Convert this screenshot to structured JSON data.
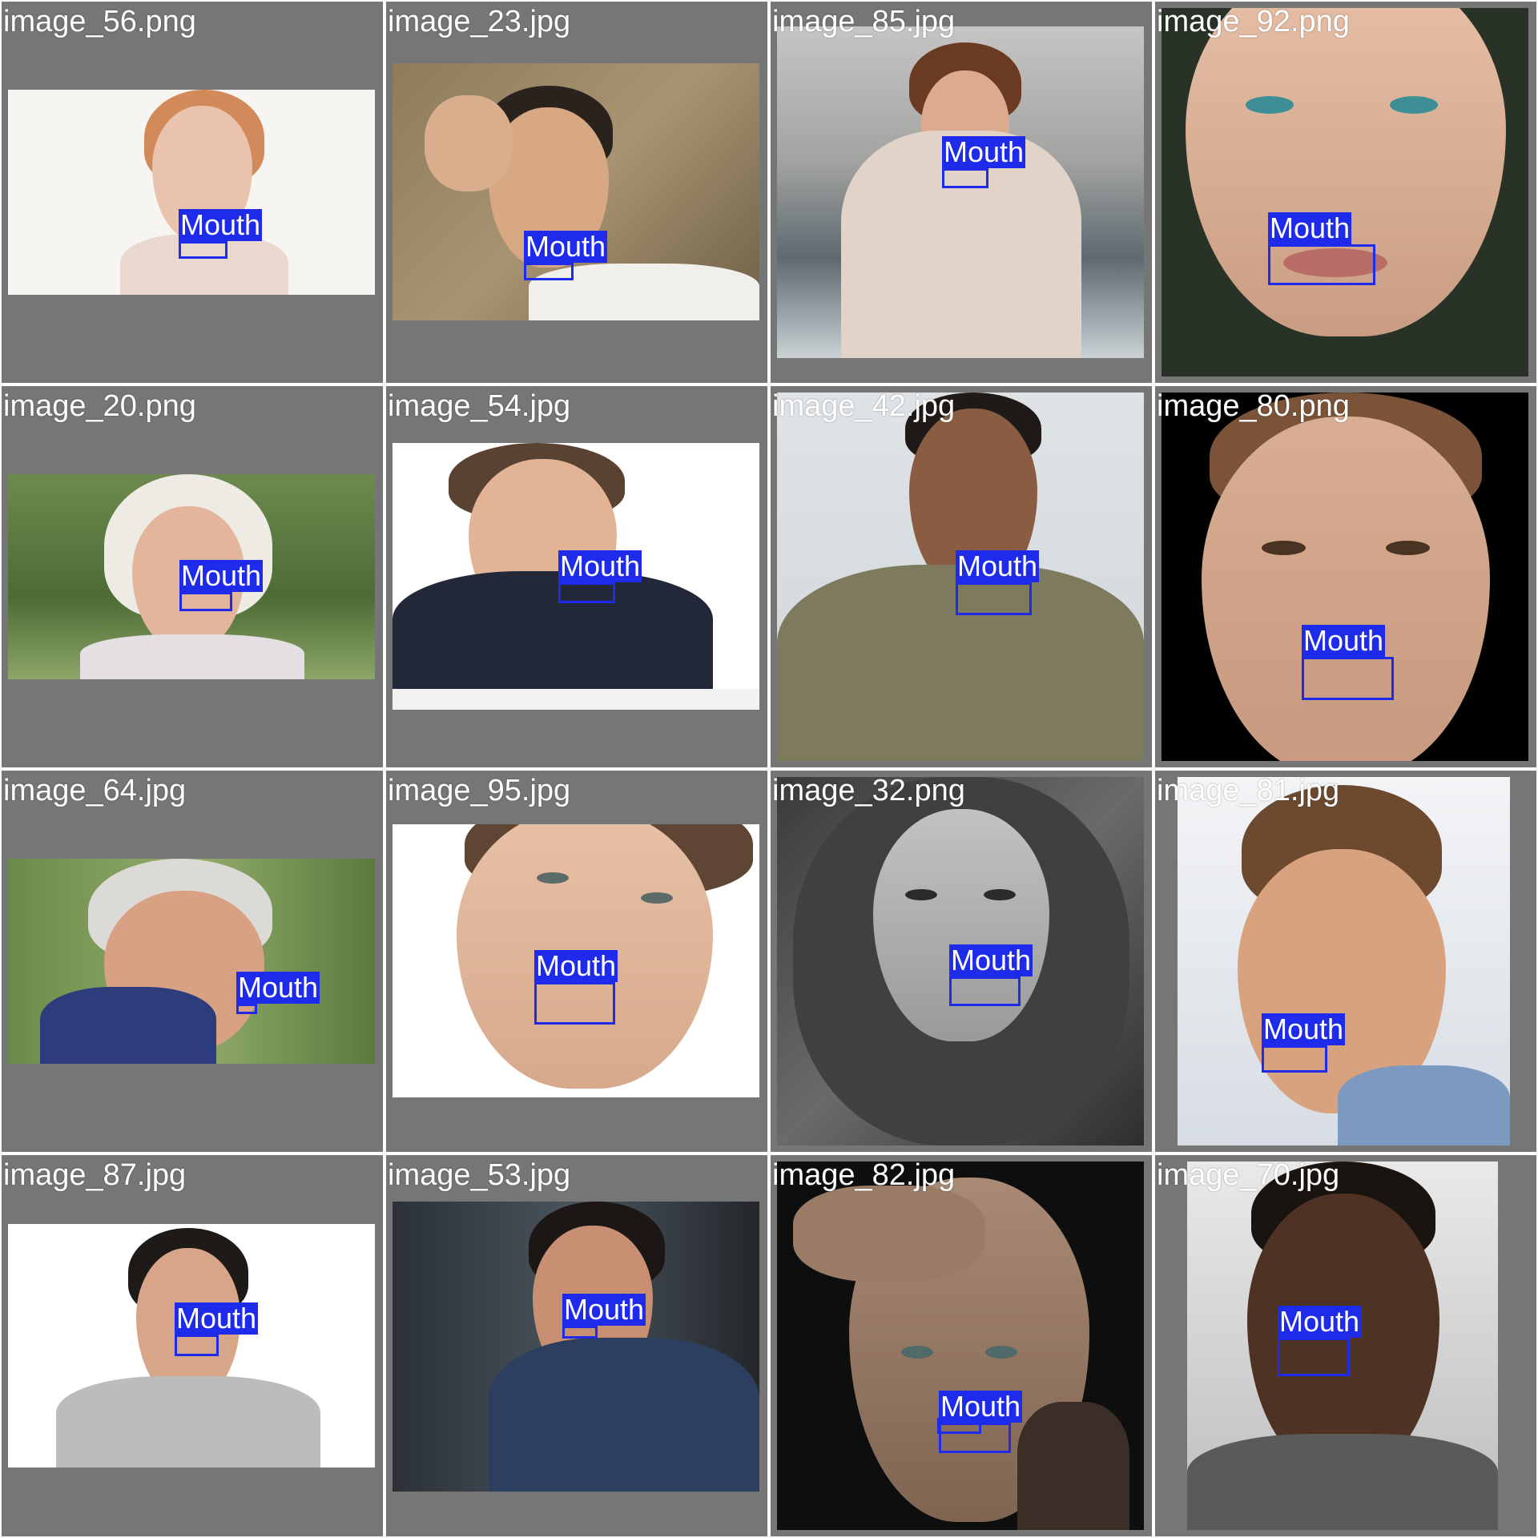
{
  "detection_label": "Mouth",
  "colors": {
    "cell_background": "#767676",
    "box_color": "#1f2bea",
    "filename_text": "#ffffff"
  },
  "tiles": [
    {
      "filename": "image_56.png",
      "label": "Mouth"
    },
    {
      "filename": "image_23.jpg",
      "label": "Mouth"
    },
    {
      "filename": "image_85.jpg",
      "label": "Mouth"
    },
    {
      "filename": "image_92.png",
      "label": "Mouth"
    },
    {
      "filename": "image_20.png",
      "label": "Mouth"
    },
    {
      "filename": "image_54.jpg",
      "label": "Mouth"
    },
    {
      "filename": "image_42.jpg",
      "label": "Mouth"
    },
    {
      "filename": "image_80.png",
      "label": "Mouth"
    },
    {
      "filename": "image_64.jpg",
      "label": "Mouth"
    },
    {
      "filename": "image_95.jpg",
      "label": "Mouth"
    },
    {
      "filename": "image_32.png",
      "label": "Mouth"
    },
    {
      "filename": "image_81.jpg",
      "label": "Mouth"
    },
    {
      "filename": "image_87.jpg",
      "label": "Mouth"
    },
    {
      "filename": "image_53.jpg",
      "label": "Mouth"
    },
    {
      "filename": "image_82.jpg",
      "label": "Mouth",
      "second_label": "Mouth"
    },
    {
      "filename": "image_70.jpg",
      "label": "Mouth"
    }
  ]
}
